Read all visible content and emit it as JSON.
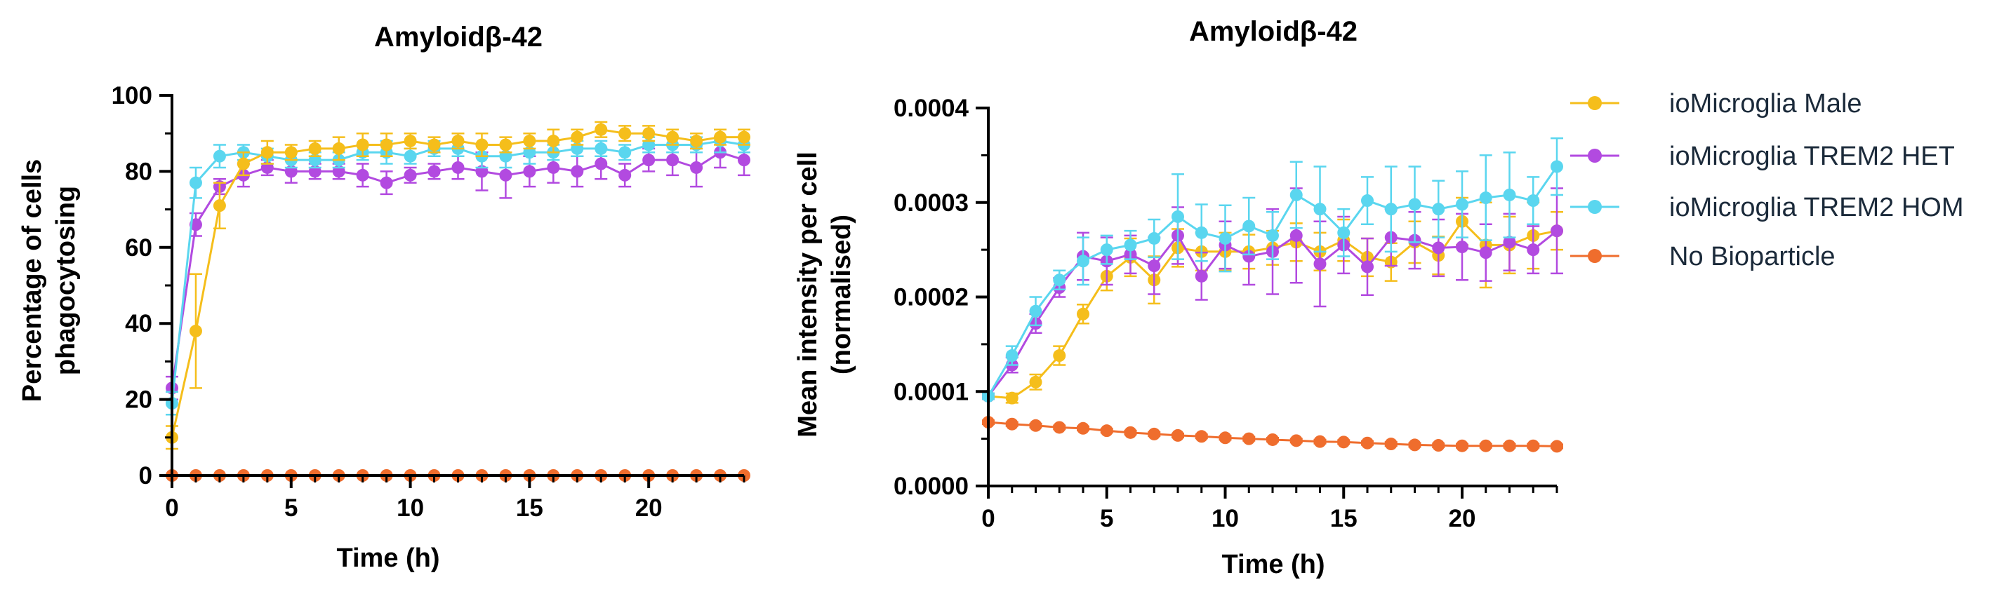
{
  "colors": {
    "male": "#f5be1b",
    "het": "#b24ae0",
    "hom": "#5ad6ef",
    "nobio": "#ef6d2d",
    "axis": "#000000"
  },
  "legend": [
    {
      "key": "male",
      "label": "ioMicroglia Male"
    },
    {
      "key": "het",
      "label": "ioMicroglia TREM2 HET"
    },
    {
      "key": "hom",
      "label": "ioMicroglia TREM2 HOM"
    },
    {
      "key": "nobio",
      "label": "No Bioparticle"
    }
  ],
  "chart_data": [
    {
      "type": "line",
      "title": "Amyloidβ-42",
      "xlabel": "Time (h)",
      "ylabel": [
        "Percentage of cells",
        "phagocytosing"
      ],
      "xlim": [
        0,
        24
      ],
      "ylim": [
        0,
        100
      ],
      "xticks": [
        0,
        5,
        10,
        15,
        20
      ],
      "yticks": [
        0,
        20,
        40,
        60,
        80,
        100
      ],
      "ytick_labels": [
        "0",
        "20",
        "40",
        "60",
        "80",
        "100"
      ],
      "x": [
        0,
        1,
        2,
        3,
        4,
        5,
        6,
        7,
        8,
        9,
        10,
        11,
        12,
        13,
        14,
        15,
        16,
        17,
        18,
        19,
        20,
        21,
        22,
        23,
        24
      ],
      "series": [
        {
          "key": "nobio",
          "name": "No Bioparticle",
          "values": [
            0,
            0,
            0,
            0,
            0,
            0,
            0,
            0,
            0,
            0,
            0,
            0,
            0,
            0,
            0,
            0,
            0,
            0,
            0,
            0,
            0,
            0,
            0,
            0,
            0
          ],
          "errors": [
            0,
            0,
            0,
            0,
            0,
            0,
            0,
            0,
            0,
            0,
            0,
            0,
            0,
            0,
            0,
            0,
            0,
            0,
            0,
            0,
            0,
            0,
            0,
            0,
            0
          ]
        },
        {
          "key": "het",
          "name": "ioMicroglia TREM2 HET",
          "values": [
            23,
            66,
            76,
            79,
            81,
            80,
            80,
            80,
            79,
            77,
            79,
            80,
            81,
            80,
            79,
            80,
            81,
            80,
            82,
            79,
            83,
            83,
            81,
            85,
            83
          ],
          "errors": [
            3,
            3,
            2,
            3,
            2,
            3,
            2,
            2,
            3,
            3,
            2,
            2,
            3,
            5,
            6,
            4,
            4,
            4,
            4,
            3,
            3,
            4,
            5,
            4,
            4
          ]
        },
        {
          "key": "hom",
          "name": "ioMicroglia TREM2 HOM",
          "values": [
            19,
            77,
            84,
            85,
            84,
            83,
            83,
            83,
            85,
            85,
            84,
            86,
            86,
            84,
            84,
            85,
            85,
            86,
            86,
            85,
            87,
            87,
            87,
            88,
            87
          ],
          "errors": [
            3,
            4,
            3,
            2,
            2,
            2,
            2,
            2,
            2,
            3,
            2,
            2,
            2,
            3,
            3,
            3,
            2,
            2,
            2,
            2,
            2,
            2,
            2,
            3,
            2
          ]
        },
        {
          "key": "male",
          "name": "ioMicroglia Male",
          "values": [
            10,
            38,
            71,
            82,
            85,
            85,
            86,
            86,
            87,
            87,
            88,
            87,
            88,
            87,
            87,
            88,
            88,
            89,
            91,
            90,
            90,
            89,
            88,
            89,
            89
          ],
          "errors": [
            3,
            15,
            6,
            3,
            3,
            2,
            2,
            3,
            3,
            3,
            2,
            2,
            2,
            3,
            2,
            2,
            3,
            2,
            2,
            2,
            2,
            2,
            2,
            2,
            2
          ]
        }
      ]
    },
    {
      "type": "line",
      "title": "Amyloidβ-42",
      "xlabel": "Time (h)",
      "ylabel": [
        "Mean intensity per cell",
        "(normalised)"
      ],
      "xlim": [
        0,
        24
      ],
      "ylim": [
        0,
        0.0004
      ],
      "xticks": [
        0,
        5,
        10,
        15,
        20
      ],
      "yticks": [
        0,
        0.0001,
        0.0002,
        0.0003,
        0.0004
      ],
      "ytick_labels": [
        "0.0000",
        "0.0001",
        "0.0002",
        "0.0003",
        "0.0004"
      ],
      "x": [
        0,
        1,
        2,
        3,
        4,
        5,
        6,
        7,
        8,
        9,
        10,
        11,
        12,
        13,
        14,
        15,
        16,
        17,
        18,
        19,
        20,
        21,
        22,
        23,
        24
      ],
      "series": [
        {
          "key": "nobio",
          "name": "No Bioparticle",
          "values": [
            6.75e-05,
            6.55e-05,
            6.4e-05,
            6.2e-05,
            6.1e-05,
            5.85e-05,
            5.65e-05,
            5.5e-05,
            5.35e-05,
            5.25e-05,
            5.1e-05,
            5e-05,
            4.9e-05,
            4.8e-05,
            4.7e-05,
            4.65e-05,
            4.55e-05,
            4.45e-05,
            4.35e-05,
            4.3e-05,
            4.25e-05,
            4.25e-05,
            4.25e-05,
            4.25e-05,
            4.2e-05
          ],
          "errors": [
            2e-06,
            2e-06,
            2e-06,
            2e-06,
            2e-06,
            2e-06,
            2e-06,
            2e-06,
            2e-06,
            2e-06,
            2e-06,
            2e-06,
            2e-06,
            2e-06,
            2e-06,
            2e-06,
            2e-06,
            2e-06,
            2e-06,
            2e-06,
            2e-06,
            2e-06,
            2e-06,
            2e-06,
            2e-06
          ]
        },
        {
          "key": "male",
          "name": "ioMicroglia Male",
          "values": [
            9.5e-05,
            9.3e-05,
            0.00011,
            0.000138,
            0.000182,
            0.000222,
            0.000242,
            0.000218,
            0.000252,
            0.000248,
            0.000248,
            0.000248,
            0.000252,
            0.000258,
            0.000248,
            0.00026,
            0.000242,
            0.000237,
            0.000258,
            0.000244,
            0.00028,
            0.000255,
            0.000255,
            0.000265,
            0.00027
          ],
          "errors": [
            3e-06,
            5e-06,
            8e-06,
            1e-05,
            1e-05,
            1.5e-05,
            2e-05,
            2.5e-05,
            2e-05,
            2e-05,
            2e-05,
            1.8e-05,
            1.8e-05,
            2e-05,
            2e-05,
            2.2e-05,
            2e-05,
            2e-05,
            2.2e-05,
            2e-05,
            2.5e-05,
            4.5e-05,
            3e-05,
            3.5e-05,
            2e-05
          ]
        },
        {
          "key": "het",
          "name": "ioMicroglia TREM2 HET",
          "values": [
            9.5e-05,
            0.000128,
            0.000172,
            0.00021,
            0.000243,
            0.000238,
            0.000245,
            0.000233,
            0.000265,
            0.000222,
            0.000255,
            0.000243,
            0.000248,
            0.000265,
            0.000235,
            0.000255,
            0.000232,
            0.000263,
            0.00026,
            0.000252,
            0.000253,
            0.000247,
            0.000258,
            0.00025,
            0.00027
          ],
          "errors": [
            3e-06,
            8e-06,
            1e-05,
            1e-05,
            2.5e-05,
            2.5e-05,
            2e-05,
            3e-05,
            3e-05,
            2.5e-05,
            2.5e-05,
            3e-05,
            4.5e-05,
            5e-05,
            4.5e-05,
            3e-05,
            3e-05,
            3e-05,
            3e-05,
            3e-05,
            3.5e-05,
            3e-05,
            3e-05,
            2.5e-05,
            4.5e-05
          ]
        },
        {
          "key": "hom",
          "name": "ioMicroglia TREM2 HOM",
          "values": [
            9.5e-05,
            0.000138,
            0.000185,
            0.000218,
            0.000238,
            0.00025,
            0.000255,
            0.000262,
            0.000285,
            0.000268,
            0.000262,
            0.000275,
            0.000265,
            0.000308,
            0.000293,
            0.000268,
            0.000302,
            0.000293,
            0.000298,
            0.000293,
            0.000298,
            0.000305,
            0.000308,
            0.000302,
            0.000338
          ],
          "errors": [
            3e-06,
            1e-05,
            1.5e-05,
            1e-05,
            2.5e-05,
            1.5e-05,
            1.5e-05,
            2e-05,
            4.5e-05,
            3e-05,
            3.5e-05,
            3e-05,
            2.5e-05,
            3.5e-05,
            4.5e-05,
            2.5e-05,
            2.5e-05,
            4.5e-05,
            4e-05,
            3e-05,
            3.5e-05,
            4.5e-05,
            4.5e-05,
            2.5e-05,
            3e-05
          ]
        }
      ]
    }
  ]
}
